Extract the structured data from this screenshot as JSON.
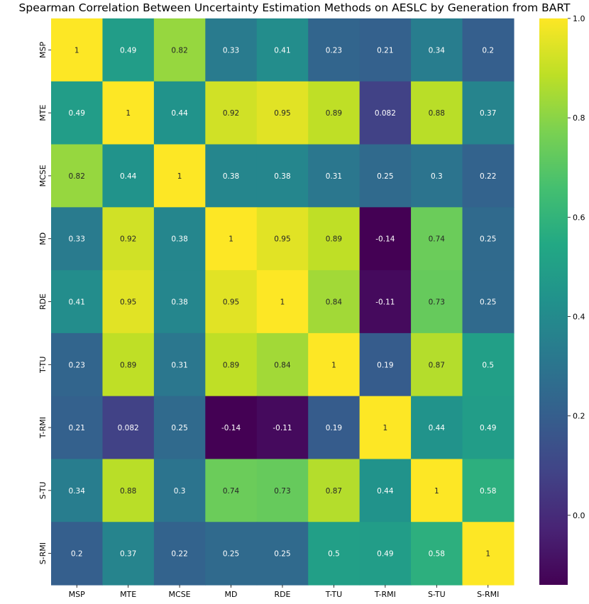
{
  "chart_data": {
    "type": "heatmap",
    "title": "Spearman Correlation Between Uncertainty Estimation Methods on AESLC by Generation from BART",
    "xlabel": "",
    "ylabel": "",
    "x_categories": [
      "MSP",
      "MTE",
      "MCSE",
      "MD",
      "RDE",
      "T-TU",
      "T-RMI",
      "S-TU",
      "S-RMI"
    ],
    "y_categories": [
      "MSP",
      "MTE",
      "MCSE",
      "MD",
      "RDE",
      "T-TU",
      "T-RMI",
      "S-TU",
      "S-RMI"
    ],
    "values": [
      [
        1,
        0.49,
        0.82,
        0.33,
        0.41,
        0.23,
        0.21,
        0.34,
        0.2
      ],
      [
        0.49,
        1,
        0.44,
        0.92,
        0.95,
        0.89,
        0.082,
        0.88,
        0.37
      ],
      [
        0.82,
        0.44,
        1,
        0.38,
        0.38,
        0.31,
        0.25,
        0.3,
        0.22
      ],
      [
        0.33,
        0.92,
        0.38,
        1,
        0.95,
        0.89,
        -0.14,
        0.74,
        0.25
      ],
      [
        0.41,
        0.95,
        0.38,
        0.95,
        1,
        0.84,
        -0.11,
        0.73,
        0.25
      ],
      [
        0.23,
        0.89,
        0.31,
        0.89,
        0.84,
        1,
        0.19,
        0.87,
        0.5
      ],
      [
        0.21,
        0.082,
        0.25,
        -0.14,
        -0.11,
        0.19,
        1,
        0.44,
        0.49
      ],
      [
        0.34,
        0.88,
        0.3,
        0.74,
        0.73,
        0.87,
        0.44,
        1,
        0.58
      ],
      [
        0.2,
        0.37,
        0.22,
        0.25,
        0.25,
        0.5,
        0.49,
        0.58,
        1
      ]
    ],
    "value_labels": [
      [
        "1",
        "0.49",
        "0.82",
        "0.33",
        "0.41",
        "0.23",
        "0.21",
        "0.34",
        "0.2"
      ],
      [
        "0.49",
        "1",
        "0.44",
        "0.92",
        "0.95",
        "0.89",
        "0.082",
        "0.88",
        "0.37"
      ],
      [
        "0.82",
        "0.44",
        "1",
        "0.38",
        "0.38",
        "0.31",
        "0.25",
        "0.3",
        "0.22"
      ],
      [
        "0.33",
        "0.92",
        "0.38",
        "1",
        "0.95",
        "0.89",
        "-0.14",
        "0.74",
        "0.25"
      ],
      [
        "0.41",
        "0.95",
        "0.38",
        "0.95",
        "1",
        "0.84",
        "-0.11",
        "0.73",
        "0.25"
      ],
      [
        "0.23",
        "0.89",
        "0.31",
        "0.89",
        "0.84",
        "1",
        "0.19",
        "0.87",
        "0.5"
      ],
      [
        "0.21",
        "0.082",
        "0.25",
        "-0.14",
        "-0.11",
        "0.19",
        "1",
        "0.44",
        "0.49"
      ],
      [
        "0.34",
        "0.88",
        "0.3",
        "0.74",
        "0.73",
        "0.87",
        "0.44",
        "1",
        "0.58"
      ],
      [
        "0.2",
        "0.37",
        "0.22",
        "0.25",
        "0.25",
        "0.5",
        "0.49",
        "0.58",
        "1"
      ]
    ],
    "colormap": "viridis",
    "vmin": -0.14,
    "vmax": 1.0,
    "colorbar_ticks": [
      0.0,
      0.2,
      0.4,
      0.6,
      0.8,
      1.0
    ],
    "colorbar_tick_labels": [
      "0.0",
      "0.2",
      "0.4",
      "0.6",
      "0.8",
      "1.0"
    ],
    "grid": false,
    "legend": "colorbar-right"
  }
}
